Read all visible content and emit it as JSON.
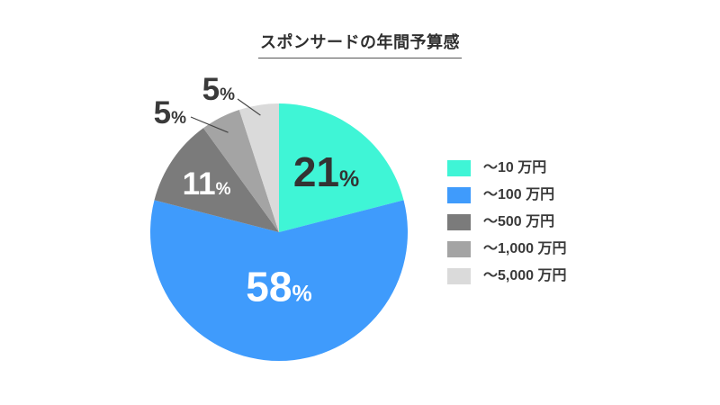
{
  "chart_data": {
    "type": "pie",
    "title": "スポンサードの年間予算感",
    "categories": [
      "～10 万円",
      "～100 万円",
      "～500 万円",
      "～1,000 万円",
      "～5,000 万円"
    ],
    "values": [
      21,
      58,
      11,
      5,
      5
    ],
    "value_suffix": "%",
    "colors": [
      "#3FF5D6",
      "#3F9BFC",
      "#7B7B7B",
      "#A4A4A4",
      "#DADADA"
    ],
    "legend_position": "right",
    "start_angle": "top, clockwise"
  }
}
